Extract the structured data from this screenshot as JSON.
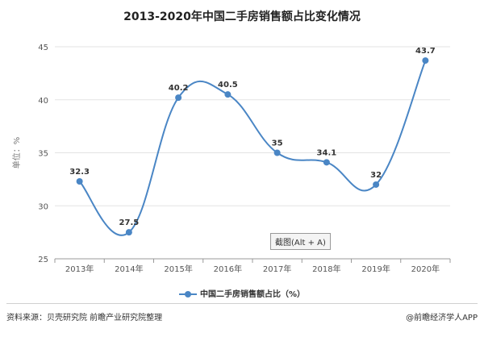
{
  "chart_data": {
    "type": "line",
    "title": "2013-2020年中国二手房销售额占比变化情况",
    "ylabel": "单位：%",
    "xlabel": "",
    "categories": [
      "2013年",
      "2014年",
      "2015年",
      "2016年",
      "2017年",
      "2018年",
      "2019年",
      "2020年"
    ],
    "series": [
      {
        "name": "中国二手房销售额占比（%）",
        "values": [
          32.3,
          27.5,
          40.2,
          40.5,
          35,
          34.1,
          32,
          43.7
        ]
      }
    ],
    "value_labels": [
      "32.3",
      "27.5",
      "40.2",
      "40.5",
      "35",
      "34.1",
      "32",
      "43.7"
    ],
    "ylim": [
      25,
      45
    ],
    "yticks": [
      25,
      30,
      35,
      40,
      45
    ],
    "grid": true,
    "legend_position": "bottom",
    "series_color": "#4a86c5"
  },
  "snip_hint": "截图(Alt + A)",
  "footer": {
    "source": "资料来源：贝壳研究院 前瞻产业研究院整理",
    "brand": "@前瞻经济学人APP"
  }
}
